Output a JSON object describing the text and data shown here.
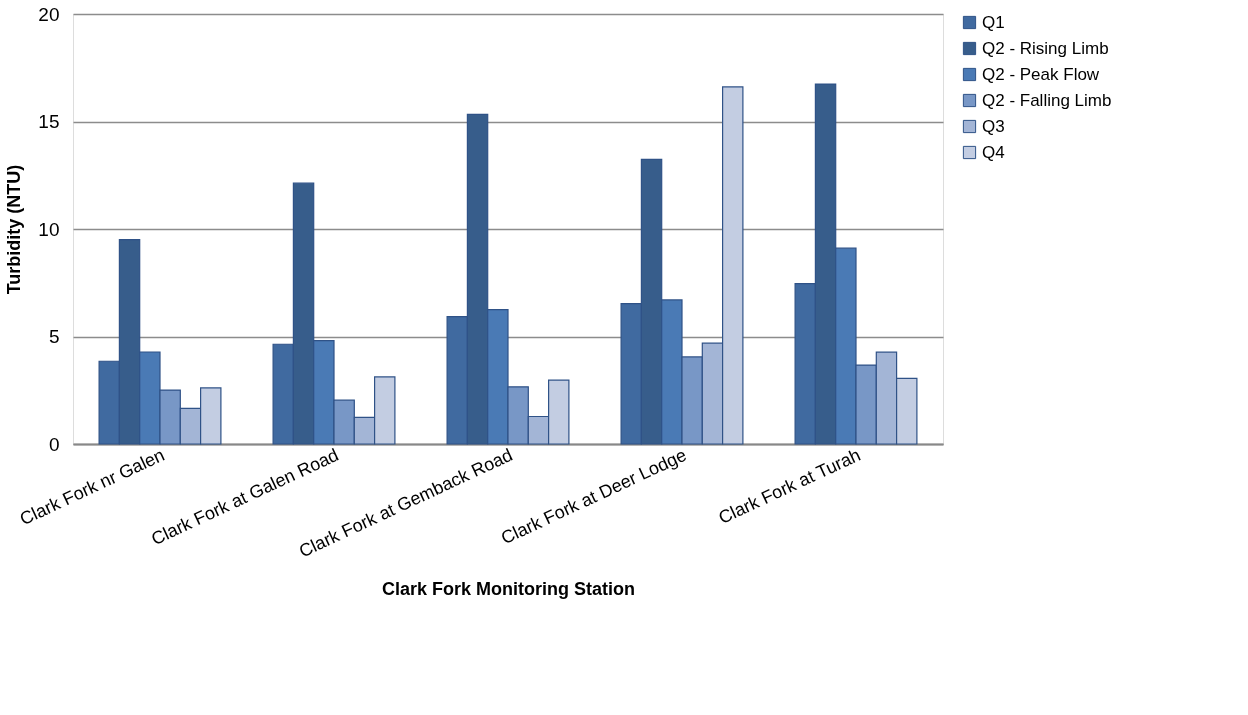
{
  "chart_data": {
    "type": "bar",
    "xlabel": "Clark Fork Monitoring Station",
    "ylabel": "Turbidity (NTU)",
    "categories": [
      "Clark Fork nr Galen",
      "Clark Fork at Galen Road",
      "Clark Fork at Gemback Road",
      "Clark Fork at Deer Lodge",
      "Clark Fork at Turah"
    ],
    "series": [
      {
        "name": "Q1",
        "color": "#406aa0",
        "values": [
          3.85,
          4.64,
          5.92,
          6.53,
          7.46
        ]
      },
      {
        "name": "Q2 - Rising Limb",
        "color": "#375d8b",
        "values": [
          9.51,
          12.13,
          15.33,
          13.24,
          16.74
        ]
      },
      {
        "name": "Q2 - Peak Flow",
        "color": "#4a7ab5",
        "values": [
          4.28,
          4.81,
          6.25,
          6.7,
          9.11
        ]
      },
      {
        "name": "Q2 - Falling Limb",
        "color": "#7897c6",
        "values": [
          2.51,
          2.04,
          2.66,
          4.05,
          3.67
        ]
      },
      {
        "name": "Q3",
        "color": "#a3b5d6",
        "values": [
          1.66,
          1.24,
          1.28,
          4.69,
          4.27
        ]
      },
      {
        "name": "Q4",
        "color": "#c3cde2",
        "values": [
          2.61,
          3.12,
          2.97,
          16.61,
          3.05
        ]
      }
    ],
    "ylim": [
      0,
      20
    ],
    "yticks": [
      0,
      5,
      10,
      15,
      20
    ],
    "grid": "y",
    "legend": "right"
  }
}
